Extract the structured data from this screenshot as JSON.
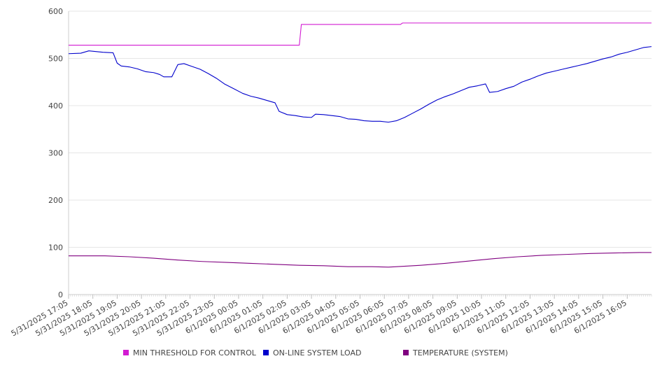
{
  "chart_data": {
    "type": "line",
    "title": "",
    "xlabel": "",
    "ylabel": "",
    "ylim": [
      0,
      600
    ],
    "yticks": [
      0,
      100,
      200,
      300,
      400,
      500,
      600
    ],
    "grid": true,
    "legend_position": "bottom",
    "x_start": "5/31/2025 17:05",
    "x_end": "6/1/2025 17:05",
    "x_tick_labels": [
      "5/31/2025 17:05",
      "5/31/2025 18:05",
      "5/31/2025 19:05",
      "5/31/2025 20:05",
      "5/31/2025 21:05",
      "5/31/2025 22:05",
      "5/31/2025 23:05",
      "6/1/2025 00:05",
      "6/1/2025 01:05",
      "6/1/2025 02:05",
      "6/1/2025 03:05",
      "6/1/2025 04:05",
      "6/1/2025 05:05",
      "6/1/2025 06:05",
      "6/1/2025 07:05",
      "6/1/2025 08:05",
      "6/1/2025 09:05",
      "6/1/2025 10:05",
      "6/1/2025 11:05",
      "6/1/2025 12:05",
      "6/1/2025 13:05",
      "6/1/2025 14:05",
      "6/1/2025 15:05",
      "6/1/2025 16:05"
    ],
    "series": [
      {
        "name": "MIN THRESHOLD FOR CONTROL",
        "color": "#d21bd2",
        "points": [
          [
            "5/31/2025 17:05",
            528
          ],
          [
            "6/1/2025 02:35",
            528
          ],
          [
            "6/1/2025 02:40",
            572
          ],
          [
            "6/1/2025 06:45",
            572
          ],
          [
            "6/1/2025 06:50",
            575
          ],
          [
            "6/1/2025 17:05",
            575
          ]
        ]
      },
      {
        "name": "ON-LINE SYSTEM LOAD",
        "color": "#0000cc",
        "points": [
          [
            "5/31/2025 17:05",
            510
          ],
          [
            "5/31/2025 17:35",
            511
          ],
          [
            "5/31/2025 17:55",
            516
          ],
          [
            "5/31/2025 18:30",
            513
          ],
          [
            "5/31/2025 18:55",
            512
          ],
          [
            "5/31/2025 19:05",
            490
          ],
          [
            "5/31/2025 19:15",
            484
          ],
          [
            "5/31/2025 19:35",
            482
          ],
          [
            "5/31/2025 19:55",
            478
          ],
          [
            "5/31/2025 20:15",
            472
          ],
          [
            "5/31/2025 20:35",
            470
          ],
          [
            "5/31/2025 20:50",
            466
          ],
          [
            "5/31/2025 21:00",
            461
          ],
          [
            "5/31/2025 21:20",
            461
          ],
          [
            "5/31/2025 21:35",
            487
          ],
          [
            "5/31/2025 21:50",
            489
          ],
          [
            "5/31/2025 22:10",
            483
          ],
          [
            "5/31/2025 22:30",
            477
          ],
          [
            "5/31/2025 22:50",
            468
          ],
          [
            "5/31/2025 23:10",
            458
          ],
          [
            "5/31/2025 23:30",
            446
          ],
          [
            "5/31/2025 23:55",
            435
          ],
          [
            "6/1/2025 00:15",
            426
          ],
          [
            "6/1/2025 00:35",
            420
          ],
          [
            "6/1/2025 00:55",
            416
          ],
          [
            "6/1/2025 01:15",
            411
          ],
          [
            "6/1/2025 01:35",
            406
          ],
          [
            "6/1/2025 01:45",
            388
          ],
          [
            "6/1/2025 02:05",
            381
          ],
          [
            "6/1/2025 02:25",
            379
          ],
          [
            "6/1/2025 02:45",
            376
          ],
          [
            "6/1/2025 03:05",
            375
          ],
          [
            "6/1/2025 03:15",
            382
          ],
          [
            "6/1/2025 03:35",
            381
          ],
          [
            "6/1/2025 03:55",
            379
          ],
          [
            "6/1/2025 04:15",
            377
          ],
          [
            "6/1/2025 04:35",
            372
          ],
          [
            "6/1/2025 04:55",
            371
          ],
          [
            "6/1/2025 05:15",
            368
          ],
          [
            "6/1/2025 05:35",
            367
          ],
          [
            "6/1/2025 05:55",
            367
          ],
          [
            "6/1/2025 06:15",
            365
          ],
          [
            "6/1/2025 06:35",
            368
          ],
          [
            "6/1/2025 06:55",
            375
          ],
          [
            "6/1/2025 07:15",
            384
          ],
          [
            "6/1/2025 07:35",
            393
          ],
          [
            "6/1/2025 07:55",
            403
          ],
          [
            "6/1/2025 08:15",
            412
          ],
          [
            "6/1/2025 08:35",
            419
          ],
          [
            "6/1/2025 08:55",
            425
          ],
          [
            "6/1/2025 09:15",
            432
          ],
          [
            "6/1/2025 09:35",
            439
          ],
          [
            "6/1/2025 09:55",
            442
          ],
          [
            "6/1/2025 10:15",
            446
          ],
          [
            "6/1/2025 10:25",
            428
          ],
          [
            "6/1/2025 10:45",
            430
          ],
          [
            "6/1/2025 11:05",
            436
          ],
          [
            "6/1/2025 11:25",
            441
          ],
          [
            "6/1/2025 11:45",
            450
          ],
          [
            "6/1/2025 12:05",
            456
          ],
          [
            "6/1/2025 12:25",
            463
          ],
          [
            "6/1/2025 12:45",
            469
          ],
          [
            "6/1/2025 13:05",
            473
          ],
          [
            "6/1/2025 13:25",
            477
          ],
          [
            "6/1/2025 13:45",
            481
          ],
          [
            "6/1/2025 14:05",
            485
          ],
          [
            "6/1/2025 14:25",
            489
          ],
          [
            "6/1/2025 14:45",
            494
          ],
          [
            "6/1/2025 15:05",
            499
          ],
          [
            "6/1/2025 15:25",
            503
          ],
          [
            "6/1/2025 15:45",
            509
          ],
          [
            "6/1/2025 16:05",
            513
          ],
          [
            "6/1/2025 16:25",
            518
          ],
          [
            "6/1/2025 16:45",
            523
          ],
          [
            "6/1/2025 17:05",
            525
          ]
        ]
      },
      {
        "name": "TEMPERATURE (SYSTEM)",
        "color": "#800080",
        "points": [
          [
            "5/31/2025 17:05",
            82
          ],
          [
            "5/31/2025 18:35",
            82
          ],
          [
            "5/31/2025 19:35",
            80
          ],
          [
            "5/31/2025 20:35",
            77
          ],
          [
            "5/31/2025 21:35",
            73
          ],
          [
            "5/31/2025 22:35",
            70
          ],
          [
            "5/31/2025 23:35",
            68
          ],
          [
            "6/1/2025 00:35",
            66
          ],
          [
            "6/1/2025 01:35",
            64
          ],
          [
            "6/1/2025 02:35",
            62
          ],
          [
            "6/1/2025 03:35",
            61
          ],
          [
            "6/1/2025 04:35",
            59
          ],
          [
            "6/1/2025 05:35",
            59
          ],
          [
            "6/1/2025 06:15",
            58
          ],
          [
            "6/1/2025 06:35",
            59
          ],
          [
            "6/1/2025 07:35",
            62
          ],
          [
            "6/1/2025 08:35",
            66
          ],
          [
            "6/1/2025 09:35",
            71
          ],
          [
            "6/1/2025 10:35",
            76
          ],
          [
            "6/1/2025 11:35",
            80
          ],
          [
            "6/1/2025 12:35",
            83
          ],
          [
            "6/1/2025 13:35",
            85
          ],
          [
            "6/1/2025 14:35",
            87
          ],
          [
            "6/1/2025 15:35",
            88
          ],
          [
            "6/1/2025 16:35",
            89
          ],
          [
            "6/1/2025 17:05",
            89
          ]
        ]
      }
    ]
  }
}
